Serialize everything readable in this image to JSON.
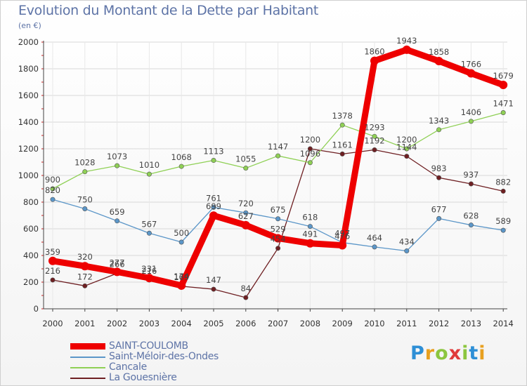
{
  "header": {
    "title": "Evolution du Montant de la Dette par Habitant",
    "subtitle": "(en €)"
  },
  "logo": {
    "letters": [
      "P",
      "r",
      "o",
      "x",
      "i",
      "t",
      "i"
    ]
  },
  "chart_data": {
    "type": "line",
    "x": [
      "2000",
      "2001",
      "2002",
      "2003",
      "2004",
      "2005",
      "2006",
      "2007",
      "2008",
      "2009",
      "2010",
      "2011",
      "2012",
      "2013",
      "2014"
    ],
    "ylim": [
      0,
      2000
    ],
    "yticks": [
      0,
      200,
      400,
      600,
      800,
      1000,
      1200,
      1400,
      1600,
      1800,
      2000
    ],
    "grid": true,
    "legend_position": "bottom-left",
    "series": [
      {
        "name": "La Gouesnière",
        "color": "#6e1f22",
        "values": [
          216,
          172,
          266,
          216,
          169,
          147,
          84,
          454,
          1200,
          1161,
          1192,
          1144,
          983,
          937,
          882
        ]
      },
      {
        "name": "Saint-Méloir-des-Ondes",
        "color": "#5b96c8",
        "values": [
          820,
          750,
          659,
          567,
          500,
          761,
          720,
          675,
          618,
          497,
          464,
          434,
          677,
          628,
          589
        ]
      },
      {
        "name": "Cancale",
        "color": "#8fd055",
        "values": [
          900,
          1028,
          1073,
          1010,
          1068,
          1113,
          1055,
          1147,
          1096,
          1378,
          1293,
          1200,
          1343,
          1406,
          1471
        ]
      },
      {
        "name": "SAINT-COULOMB",
        "color": "#ee0000",
        "values": [
          359,
          320,
          277,
          231,
          174,
          699,
          627,
          529,
          491,
          476,
          1860,
          1943,
          1858,
          1766,
          1679
        ],
        "bold": true
      }
    ],
    "legend_order": [
      "SAINT-COULOMB",
      "Saint-Méloir-des-Ondes",
      "Cancale",
      "La Gouesnière"
    ]
  }
}
